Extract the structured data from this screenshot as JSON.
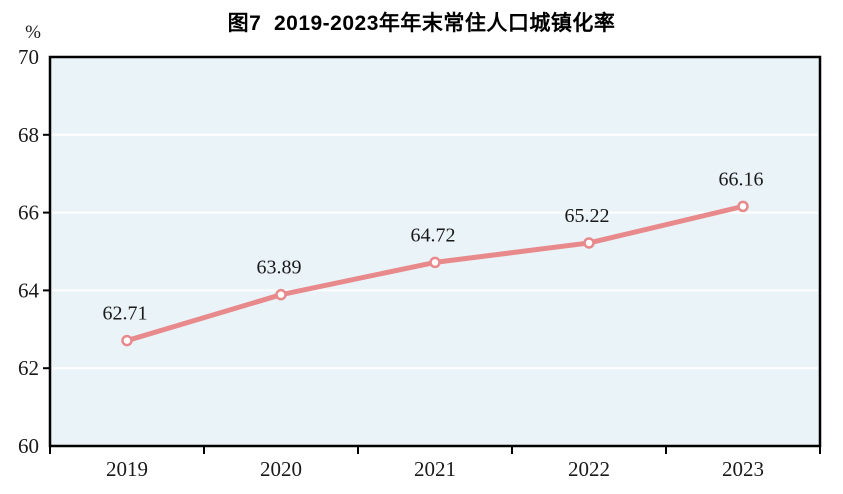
{
  "figure": {
    "title": "图7  2019-2023年年末常住人口城镇化率",
    "unit_label": "%"
  },
  "chart_data": {
    "type": "line",
    "title": "图7  2019-2023年年末常住人口城镇化率",
    "categories": [
      "2019",
      "2020",
      "2021",
      "2022",
      "2023"
    ],
    "series": [
      {
        "name": "",
        "values": [
          62.71,
          63.89,
          64.72,
          65.22,
          66.16
        ],
        "labels": [
          "62.71",
          "63.89",
          "64.72",
          "65.22",
          "66.16"
        ]
      }
    ],
    "xlabel": "",
    "ylabel": "%",
    "ylim": [
      60,
      70
    ],
    "yticks": [
      60,
      62,
      64,
      66,
      68,
      70
    ],
    "grid": true,
    "legend_position": "none",
    "colors": {
      "line": "#e8898b",
      "marker_fill": "#ffffff",
      "plot_background": "#eaf3f8",
      "plot_border": "#000000",
      "gridline": "#ffffff",
      "tick": "#000000",
      "text": "#1a1a1a"
    }
  }
}
